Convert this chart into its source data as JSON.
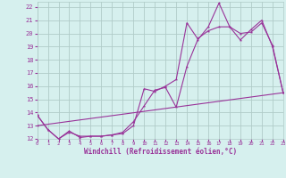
{
  "title": "Windchill (Refroidissement éolien,°C)",
  "bg_color": "#d6f0ee",
  "grid_color": "#b0ccc8",
  "line_color": "#993399",
  "xlim": [
    0,
    23
  ],
  "ylim": [
    12,
    22.4
  ],
  "yticks": [
    12,
    13,
    14,
    15,
    16,
    17,
    18,
    19,
    20,
    21,
    22
  ],
  "xticks": [
    0,
    1,
    2,
    3,
    4,
    5,
    6,
    7,
    8,
    9,
    10,
    11,
    12,
    13,
    14,
    15,
    16,
    17,
    18,
    19,
    20,
    21,
    22,
    23
  ],
  "line1_x": [
    0,
    1,
    2,
    3,
    4,
    5,
    6,
    7,
    8,
    9,
    10,
    11,
    12,
    13,
    14,
    15,
    16,
    17,
    18,
    19,
    20,
    21,
    22,
    23
  ],
  "line1_y": [
    13.8,
    12.7,
    12.0,
    12.6,
    12.1,
    12.2,
    12.2,
    12.3,
    12.5,
    13.3,
    14.5,
    15.7,
    15.9,
    14.4,
    17.5,
    19.5,
    20.5,
    22.3,
    20.5,
    19.5,
    20.3,
    21.0,
    19.0,
    15.5
  ],
  "line2_x": [
    0,
    1,
    2,
    3,
    4,
    5,
    6,
    7,
    8,
    9,
    10,
    11,
    12,
    13,
    14,
    15,
    16,
    17,
    18,
    19,
    20,
    21,
    22,
    23
  ],
  "line2_y": [
    13.8,
    12.7,
    12.0,
    12.5,
    12.2,
    12.2,
    12.2,
    12.3,
    12.4,
    13.0,
    15.8,
    15.6,
    16.0,
    16.5,
    20.8,
    19.6,
    20.2,
    20.5,
    20.5,
    20.0,
    20.1,
    20.8,
    19.1,
    15.5
  ],
  "line3_x": [
    0,
    23
  ],
  "line3_y": [
    13.0,
    15.5
  ]
}
